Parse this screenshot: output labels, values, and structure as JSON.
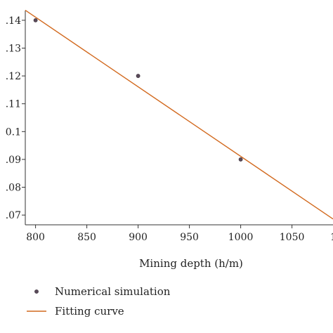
{
  "chart_data": {
    "type": "scatter",
    "xlabel": "Mining depth (h/m)",
    "ylabel": "",
    "xlim": [
      790,
      1090
    ],
    "ylim": [
      0.0665,
      0.1435
    ],
    "x_ticks": [
      800,
      850,
      900,
      950,
      1000,
      1050
    ],
    "x_tick_labels": [
      "800",
      "850",
      "900",
      "950",
      "1000",
      "1050"
    ],
    "y_ticks": [
      0.07,
      0.08,
      0.09,
      0.1,
      0.11,
      0.12,
      0.13,
      0.14
    ],
    "y_tick_labels": [
      ".07",
      ".08",
      ".09",
      "0.1",
      ".11",
      ".12",
      ".13",
      ".14"
    ],
    "grid": false,
    "legend_placement": "bottom",
    "series": [
      {
        "name": "Numerical simulation",
        "type": "scatter",
        "color": "#5a4a5a",
        "x": [
          800,
          900,
          1000
        ],
        "y": [
          0.14,
          0.12,
          0.09
        ]
      },
      {
        "name": "Fitting curve",
        "type": "line",
        "color": "#d2691e",
        "x": [
          790,
          1090
        ],
        "y": [
          0.1436,
          0.0686
        ]
      }
    ],
    "cut_off_right_tick_label": "1"
  }
}
